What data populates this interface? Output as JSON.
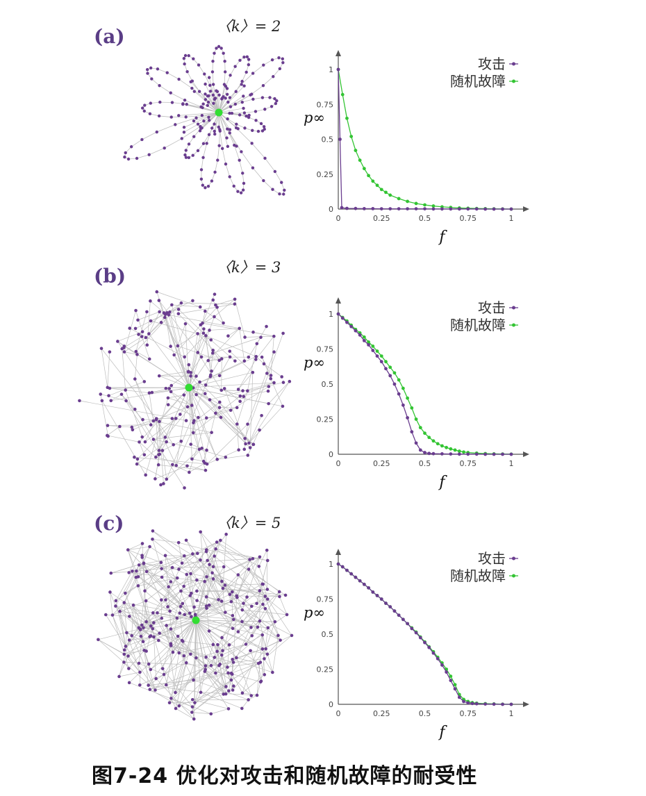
{
  "caption": "图7-24   优化对攻击和随机故障的耐受性",
  "colors": {
    "attack": "#6a3d8f",
    "random": "#33c433",
    "hub": "#33dd33",
    "edge": "#bdbdbd",
    "axis": "#555555",
    "panel_label": "#5a3d86"
  },
  "panels": [
    {
      "label": "(a)",
      "k_label": "〈k〉= 2"
    },
    {
      "label": "(b)",
      "k_label": "〈k〉= 3"
    },
    {
      "label": "(c)",
      "k_label": "〈k〉= 5"
    }
  ],
  "chart_data": [
    {
      "type": "line",
      "xlabel": "f",
      "ylabel": "p∞",
      "xlim": [
        0,
        1
      ],
      "ylim": [
        0,
        1
      ],
      "xticks": [
        "0",
        "0.25",
        "0.5",
        "0.75",
        "1"
      ],
      "yticks": [
        "0",
        "0.25",
        "0.5",
        "0.75",
        "1"
      ],
      "legend_position": "top-right",
      "series": [
        {
          "name": "攻击",
          "x": [
            0,
            0.01,
            0.02,
            0.05,
            0.1,
            0.15,
            0.2,
            0.25,
            0.3,
            0.35,
            0.4,
            0.45,
            0.5,
            0.55,
            0.6,
            0.65,
            0.7,
            0.75,
            0.8,
            0.85,
            0.9,
            0.95,
            1
          ],
          "values": [
            1,
            0.5,
            0.01,
            0.005,
            0.004,
            0.003,
            0.003,
            0.002,
            0.002,
            0.002,
            0.002,
            0.002,
            0.002,
            0.001,
            0.001,
            0.001,
            0.001,
            0.001,
            0.001,
            0,
            0,
            0,
            0
          ]
        },
        {
          "name": "随机故障",
          "x": [
            0,
            0.025,
            0.05,
            0.075,
            0.1,
            0.125,
            0.15,
            0.175,
            0.2,
            0.225,
            0.25,
            0.275,
            0.3,
            0.35,
            0.4,
            0.45,
            0.5,
            0.55,
            0.6,
            0.65,
            0.7,
            0.75,
            0.8,
            0.85,
            0.9,
            0.95,
            1
          ],
          "values": [
            1,
            0.82,
            0.65,
            0.52,
            0.42,
            0.35,
            0.29,
            0.24,
            0.2,
            0.17,
            0.14,
            0.12,
            0.1,
            0.075,
            0.055,
            0.04,
            0.03,
            0.022,
            0.016,
            0.012,
            0.008,
            0.006,
            0.004,
            0.003,
            0.002,
            0.001,
            0
          ]
        }
      ]
    },
    {
      "type": "line",
      "xlabel": "f",
      "ylabel": "p∞",
      "xlim": [
        0,
        1
      ],
      "ylim": [
        0,
        1
      ],
      "xticks": [
        "0",
        "0.25",
        "0.5",
        "0.75",
        "1"
      ],
      "yticks": [
        "0",
        "0.25",
        "0.5",
        "0.75",
        "1"
      ],
      "legend_position": "top-right",
      "series": [
        {
          "name": "攻击",
          "x": [
            0,
            0.025,
            0.05,
            0.075,
            0.1,
            0.125,
            0.15,
            0.175,
            0.2,
            0.225,
            0.25,
            0.275,
            0.3,
            0.325,
            0.35,
            0.375,
            0.4,
            0.425,
            0.45,
            0.475,
            0.5,
            0.525,
            0.55,
            0.6,
            0.65,
            0.7,
            0.75,
            0.8,
            0.85,
            0.9,
            0.95,
            1
          ],
          "values": [
            1,
            0.97,
            0.94,
            0.91,
            0.88,
            0.85,
            0.81,
            0.78,
            0.74,
            0.7,
            0.66,
            0.61,
            0.56,
            0.5,
            0.43,
            0.35,
            0.26,
            0.16,
            0.08,
            0.03,
            0.012,
            0.006,
            0.004,
            0.003,
            0.002,
            0.001,
            0.001,
            0.001,
            0,
            0,
            0,
            0
          ]
        },
        {
          "name": "随机故障",
          "x": [
            0,
            0.025,
            0.05,
            0.075,
            0.1,
            0.125,
            0.15,
            0.175,
            0.2,
            0.225,
            0.25,
            0.275,
            0.3,
            0.325,
            0.35,
            0.375,
            0.4,
            0.425,
            0.45,
            0.475,
            0.5,
            0.525,
            0.55,
            0.575,
            0.6,
            0.625,
            0.65,
            0.675,
            0.7,
            0.725,
            0.75,
            0.8,
            0.85,
            0.9,
            0.95,
            1
          ],
          "values": [
            1,
            0.975,
            0.95,
            0.92,
            0.89,
            0.865,
            0.835,
            0.8,
            0.77,
            0.735,
            0.7,
            0.66,
            0.62,
            0.58,
            0.53,
            0.47,
            0.4,
            0.33,
            0.25,
            0.19,
            0.15,
            0.12,
            0.095,
            0.075,
            0.06,
            0.048,
            0.038,
            0.03,
            0.022,
            0.016,
            0.012,
            0.008,
            0.005,
            0.003,
            0.002,
            0.001
          ]
        }
      ]
    },
    {
      "type": "line",
      "xlabel": "f",
      "ylabel": "p∞",
      "xlim": [
        0,
        1
      ],
      "ylim": [
        0,
        1
      ],
      "xticks": [
        "0",
        "0.25",
        "0.5",
        "0.75",
        "1"
      ],
      "yticks": [
        "0",
        "0.25",
        "0.5",
        "0.75",
        "1"
      ],
      "legend_position": "top-right",
      "series": [
        {
          "name": "攻击",
          "x": [
            0,
            0.025,
            0.05,
            0.075,
            0.1,
            0.125,
            0.15,
            0.175,
            0.2,
            0.225,
            0.25,
            0.275,
            0.3,
            0.325,
            0.35,
            0.375,
            0.4,
            0.425,
            0.45,
            0.475,
            0.5,
            0.525,
            0.55,
            0.575,
            0.6,
            0.625,
            0.65,
            0.675,
            0.7,
            0.725,
            0.75,
            0.775,
            0.8,
            0.85,
            0.9,
            0.95,
            1
          ],
          "values": [
            1,
            0.98,
            0.955,
            0.93,
            0.905,
            0.88,
            0.855,
            0.83,
            0.8,
            0.775,
            0.75,
            0.72,
            0.695,
            0.665,
            0.635,
            0.605,
            0.575,
            0.54,
            0.51,
            0.475,
            0.44,
            0.405,
            0.365,
            0.325,
            0.28,
            0.23,
            0.17,
            0.11,
            0.05,
            0.02,
            0.01,
            0.006,
            0.004,
            0.002,
            0.001,
            0,
            0
          ]
        },
        {
          "name": "随机故障",
          "x": [
            0,
            0.025,
            0.05,
            0.075,
            0.1,
            0.125,
            0.15,
            0.175,
            0.2,
            0.225,
            0.25,
            0.275,
            0.3,
            0.325,
            0.35,
            0.375,
            0.4,
            0.425,
            0.45,
            0.475,
            0.5,
            0.525,
            0.55,
            0.575,
            0.6,
            0.625,
            0.65,
            0.675,
            0.7,
            0.725,
            0.75,
            0.775,
            0.8,
            0.85,
            0.9,
            0.95,
            1
          ],
          "values": [
            1,
            0.98,
            0.955,
            0.93,
            0.905,
            0.88,
            0.855,
            0.83,
            0.8,
            0.775,
            0.75,
            0.72,
            0.695,
            0.665,
            0.635,
            0.605,
            0.575,
            0.545,
            0.515,
            0.48,
            0.445,
            0.41,
            0.375,
            0.335,
            0.295,
            0.25,
            0.2,
            0.14,
            0.07,
            0.035,
            0.02,
            0.012,
            0.008,
            0.005,
            0.003,
            0.001,
            0
          ]
        }
      ]
    }
  ]
}
